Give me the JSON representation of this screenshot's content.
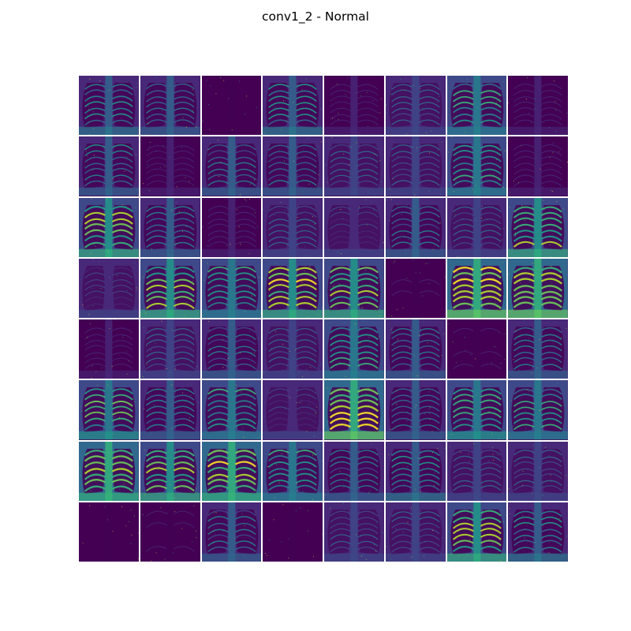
{
  "figure": {
    "title": "conv1_2 - Normal",
    "rows": 8,
    "cols": 8,
    "colormap": "viridis",
    "background_color": "#440154",
    "feature_map_intensity": [
      [
        0.45,
        0.35,
        0.02,
        0.45,
        0.1,
        0.3,
        0.55,
        0.12
      ],
      [
        0.4,
        0.08,
        0.35,
        0.35,
        0.3,
        0.3,
        0.55,
        0.15
      ],
      [
        0.75,
        0.4,
        0.15,
        0.3,
        0.2,
        0.35,
        0.3,
        0.7
      ],
      [
        0.2,
        0.7,
        0.55,
        0.75,
        0.7,
        0.05,
        0.85,
        0.85
      ],
      [
        0.08,
        0.3,
        0.35,
        0.3,
        0.55,
        0.35,
        0.05,
        0.4
      ],
      [
        0.6,
        0.4,
        0.55,
        0.2,
        0.85,
        0.35,
        0.6,
        0.5
      ],
      [
        0.8,
        0.7,
        0.8,
        0.55,
        0.35,
        0.45,
        0.3,
        0.3
      ],
      [
        0.03,
        0.05,
        0.35,
        0.03,
        0.25,
        0.3,
        0.7,
        0.45
      ]
    ]
  }
}
